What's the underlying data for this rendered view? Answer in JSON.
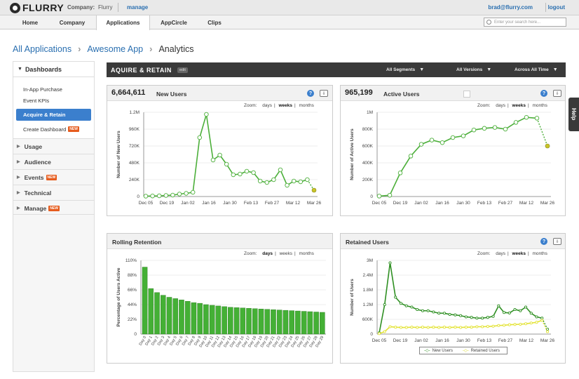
{
  "top": {
    "logo": "FLURRY",
    "company_label": "Company:",
    "company_name": "Flurry",
    "manage": "manage",
    "email": "brad@flurry.com",
    "logout": "logout"
  },
  "nav": {
    "tabs": [
      "Home",
      "Company",
      "Applications",
      "AppCircle",
      "Clips"
    ],
    "active": "Applications",
    "search_placeholder": "Enter your search here..."
  },
  "breadcrumb": [
    "All Applications",
    "Awesome App",
    "Analytics"
  ],
  "sidebar": {
    "dashboards": "Dashboards",
    "items": [
      "In-App Purchase",
      "Event KPIs",
      "Acquire & Retain",
      "Create Dashboard"
    ],
    "active_item": "Acquire & Retain",
    "groups": [
      "Usage",
      "Audience",
      "Events",
      "Technical",
      "Manage"
    ],
    "new_badge": "NEW"
  },
  "header": {
    "title": "AQUIRE & RETAIN",
    "edit": "edit",
    "segments": "All Segments",
    "versions": "All Versions",
    "time": "Across All Time"
  },
  "help_tab": "Help",
  "zoom": {
    "label": "Zoom:",
    "days": "days",
    "weeks": "weeks",
    "months": "months"
  },
  "panels": {
    "new_users": {
      "metric": "6,664,611",
      "title": "New Users",
      "zoom_selected": "weeks"
    },
    "active_users": {
      "metric": "965,199",
      "title": "Active Users",
      "zoom_selected": "weeks"
    },
    "rolling_retention": {
      "title": "Rolling Retention",
      "zoom_selected": "days"
    },
    "retained_users": {
      "title": "Retained Users",
      "zoom_selected": "weeks"
    }
  },
  "chart_data": [
    {
      "id": "new_users",
      "type": "line",
      "ylabel": "Number of New Users",
      "yticks": [
        "0",
        "240K",
        "480K",
        "720K",
        "960K",
        "1.2M"
      ],
      "ylim": [
        0,
        1200000
      ],
      "xticks": [
        "Dec 05",
        "Dec 19",
        "Jan 02",
        "Jan 16",
        "Jan 30",
        "Feb 13",
        "Feb 27",
        "Mar 12",
        "Mar 26"
      ],
      "values": [
        5000,
        8000,
        10000,
        15000,
        20000,
        35000,
        45000,
        60000,
        840000,
        1170000,
        520000,
        590000,
        460000,
        310000,
        320000,
        360000,
        340000,
        220000,
        200000,
        240000,
        380000,
        160000,
        220000,
        210000,
        240000,
        90000
      ],
      "color": "#4caf3a",
      "last_color": "#c9c428"
    },
    {
      "id": "active_users",
      "type": "line",
      "ylabel": "Number of Active Users",
      "yticks": [
        "0",
        "200K",
        "400K",
        "600K",
        "800K",
        "1M"
      ],
      "ylim": [
        0,
        1000000
      ],
      "xticks": [
        "Dec 05",
        "Dec 19",
        "Jan 02",
        "Jan 16",
        "Jan 30",
        "Feb 13",
        "Feb 27",
        "Mar 12",
        "Mar 26"
      ],
      "values": [
        5000,
        15000,
        280000,
        480000,
        620000,
        670000,
        640000,
        700000,
        720000,
        790000,
        810000,
        820000,
        800000,
        880000,
        940000,
        930000,
        600000
      ],
      "color": "#4caf3a",
      "last_color": "#c9c428"
    },
    {
      "id": "rolling_retention",
      "type": "bar",
      "ylabel": "Percentage of Users Active",
      "yticks": [
        "0",
        "22%",
        "44%",
        "66%",
        "88%",
        "110%"
      ],
      "ylim": [
        0,
        110
      ],
      "categories": [
        "Day 0",
        "Day 1",
        "Day 2",
        "Day 3",
        "Day 4",
        "Day 5",
        "Day 6",
        "Day 7",
        "Day 8",
        "Day 9",
        "Day 10",
        "Day 11",
        "Day 12",
        "Day 13",
        "Day 14",
        "Day 15",
        "Day 16",
        "Day 17",
        "Day 18",
        "Day 19",
        "Day 20",
        "Day 21",
        "Day 22",
        "Day 23",
        "Day 24",
        "Day 25",
        "Day 26",
        "Day 27",
        "Day 28",
        "Day 29"
      ],
      "values": [
        100,
        68,
        62,
        58,
        55,
        53,
        51,
        49,
        47,
        46,
        44,
        43,
        42,
        41,
        40,
        39.5,
        39,
        38.5,
        38,
        37.5,
        37,
        36.5,
        36,
        35.5,
        35,
        34.5,
        34,
        33.5,
        33,
        32.5
      ],
      "color": "#44b035"
    },
    {
      "id": "retained_users",
      "type": "line",
      "ylabel": "Number of Users",
      "yticks": [
        "0",
        "600K",
        "1.2M",
        "1.8M",
        "2.4M",
        "3M"
      ],
      "ylim": [
        0,
        3000000
      ],
      "xticks": [
        "Dec 05",
        "Dec 19",
        "Jan 02",
        "Jan 16",
        "Jan 30",
        "Feb 13",
        "Feb 27",
        "Mar 12",
        "Mar 26"
      ],
      "legend": [
        "New Users",
        "Retained Users"
      ],
      "series": [
        {
          "name": "New Users",
          "color": "#2e8f22",
          "values": [
            50000,
            1200000,
            2900000,
            1500000,
            1250000,
            1150000,
            1100000,
            1000000,
            950000,
            950000,
            900000,
            850000,
            850000,
            800000,
            780000,
            750000,
            700000,
            680000,
            650000,
            650000,
            680000,
            720000,
            1150000,
            880000,
            860000,
            1000000,
            950000,
            1100000,
            850000,
            700000,
            650000,
            200000
          ]
        },
        {
          "name": "Retained Users",
          "color": "#e3e335",
          "values": [
            20000,
            100000,
            300000,
            280000,
            270000,
            270000,
            280000,
            270000,
            280000,
            270000,
            280000,
            270000,
            280000,
            270000,
            280000,
            270000,
            280000,
            280000,
            300000,
            300000,
            310000,
            320000,
            350000,
            360000,
            380000,
            390000,
            400000,
            420000,
            450000,
            480000,
            560000,
            100000
          ]
        }
      ]
    }
  ]
}
